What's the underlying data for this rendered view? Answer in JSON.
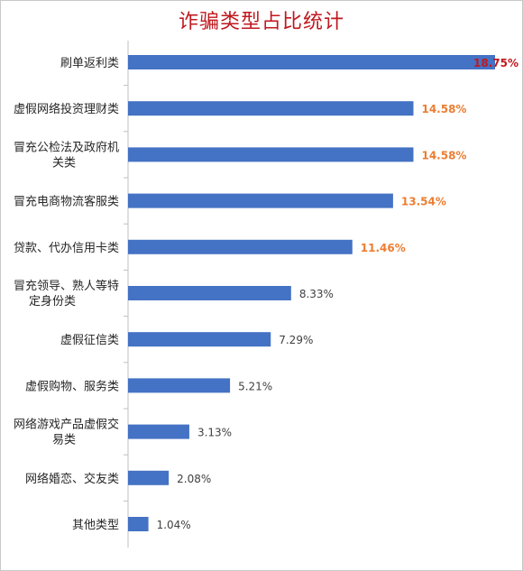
{
  "chart_data": {
    "type": "bar",
    "orientation": "horizontal",
    "title": "诈骗类型占比统计",
    "categories": [
      [
        "刷单返利类"
      ],
      [
        "虚假网络投资理财类"
      ],
      [
        "冒充公检法及政府机",
        "关类"
      ],
      [
        "冒充电商物流客服类"
      ],
      [
        "贷款、代办信用卡类"
      ],
      [
        "冒充领导、熟人等特",
        "定身份类"
      ],
      [
        "虚假征信类"
      ],
      [
        "虚假购物、服务类"
      ],
      [
        "网络游戏产品虚假交",
        "易类"
      ],
      [
        "网络婚恋、交友类"
      ],
      [
        "其他类型"
      ]
    ],
    "values": [
      18.75,
      14.58,
      14.58,
      13.54,
      11.46,
      8.33,
      7.29,
      5.21,
      3.13,
      2.08,
      1.04
    ],
    "labels": [
      "18.75%",
      "14.58%",
      "14.58%",
      "13.54%",
      "11.46%",
      "8.33%",
      "7.29%",
      "5.21%",
      "3.13%",
      "2.08%",
      "1.04%"
    ],
    "xlim": [
      0,
      18.75
    ],
    "grid": false,
    "colors": {
      "bar": "#4472c4",
      "title": "#c0181f",
      "label_top": "#c0181f",
      "label_high": "#ed7d31",
      "label_normal": "#404040",
      "axis": "#bfbfbf"
    }
  }
}
